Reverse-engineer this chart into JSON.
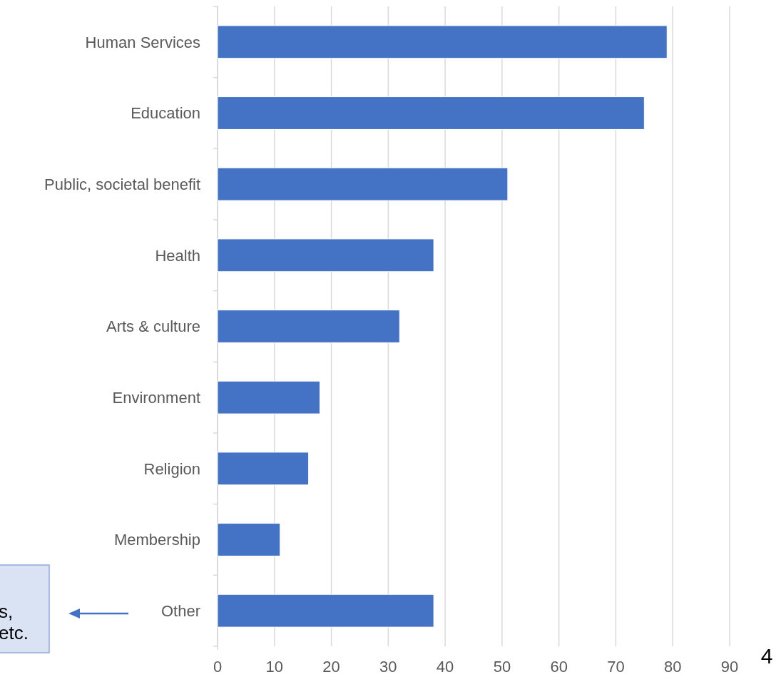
{
  "chart_data": {
    "type": "bar",
    "orientation": "horizontal",
    "categories": [
      "Human Services",
      "Education",
      "Public, societal benefit",
      "Health",
      "Arts & culture",
      "Environment",
      "Religion",
      "Membership",
      "Other"
    ],
    "values": [
      79,
      75,
      51,
      38,
      32,
      18,
      16,
      11,
      38
    ],
    "color": "#4472c4",
    "xlim": [
      0,
      90
    ],
    "xticks": [
      0,
      10,
      20,
      30,
      40,
      50,
      60,
      70,
      80,
      90
    ],
    "grid": "x",
    "annotations": [
      "s,\netc.",
      "4"
    ]
  }
}
